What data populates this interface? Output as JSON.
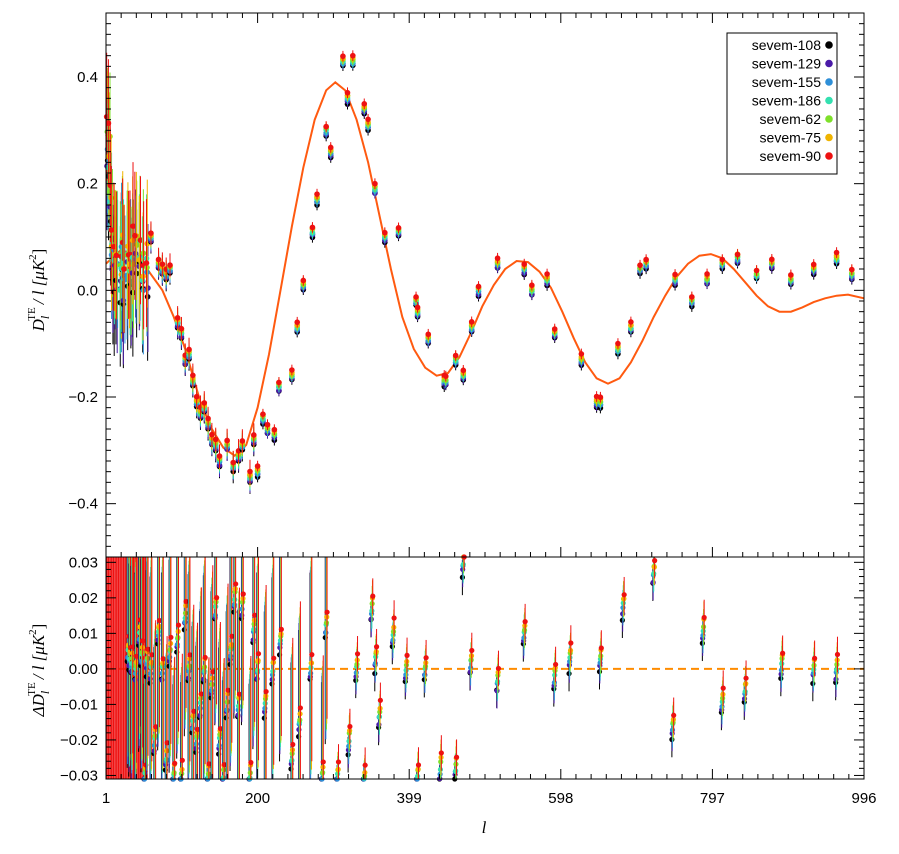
{
  "colors": {
    "sevem-108": "#000000",
    "sevem-129": "#4a1aa8",
    "sevem-155": "#2e8fd8",
    "sevem-186": "#33e0b0",
    "sevem-62": "#7ee02a",
    "sevem-75": "#f0b400",
    "sevem-90": "#ee1111",
    "model": "#ff5a10",
    "zero_line": "#ff8c00"
  },
  "chart_data": [
    {
      "type": "scatter",
      "panel": "top",
      "ylabel_main": "D",
      "ylabel_sub": "l",
      "ylabel_sup": "TE",
      "ylabel_rest": "/ l  [μK",
      "ylabel_unit_sup": "2",
      "ylabel_close": "]",
      "xlim": [
        1,
        996
      ],
      "ylim": [
        -0.5,
        0.52
      ],
      "xticks_labeled": [
        1,
        200,
        399,
        598,
        797,
        996
      ],
      "yticks_labeled": [
        {
          "value": -0.4,
          "label": "−0.4"
        },
        {
          "value": -0.2,
          "label": "−0.2"
        },
        {
          "value": 0.0,
          "label": "0.0"
        },
        {
          "value": 0.2,
          "label": "0.2"
        },
        {
          "value": 0.4,
          "label": "0.4"
        }
      ],
      "legend": {
        "position": "top-right",
        "entries": [
          "sevem-108",
          "sevem-129",
          "sevem-155",
          "sevem-186",
          "sevem-62",
          "sevem-75",
          "sevem-90"
        ]
      },
      "model_curve": {
        "x": [
          1,
          20,
          35,
          50,
          60,
          75,
          90,
          105,
          115,
          125,
          140,
          155,
          170,
          185,
          200,
          215,
          230,
          245,
          260,
          275,
          290,
          302,
          315,
          330,
          345,
          360,
          375,
          390,
          405,
          420,
          435,
          450,
          465,
          480,
          495,
          510,
          525,
          540,
          555,
          570,
          585,
          600,
          615,
          630,
          645,
          660,
          675,
          690,
          705,
          720,
          735,
          750,
          765,
          780,
          795,
          810,
          825,
          840,
          855,
          870,
          885,
          900,
          915,
          930,
          945,
          960,
          975,
          996
        ],
        "y": [
          0.05,
          0.075,
          0.07,
          0.05,
          0.03,
          0.0,
          -0.05,
          -0.11,
          -0.16,
          -0.21,
          -0.26,
          -0.295,
          -0.31,
          -0.29,
          -0.22,
          -0.12,
          0.0,
          0.12,
          0.23,
          0.32,
          0.375,
          0.39,
          0.375,
          0.32,
          0.24,
          0.14,
          0.04,
          -0.05,
          -0.11,
          -0.145,
          -0.16,
          -0.155,
          -0.125,
          -0.08,
          -0.03,
          0.01,
          0.04,
          0.055,
          0.053,
          0.035,
          0.005,
          -0.04,
          -0.09,
          -0.135,
          -0.165,
          -0.175,
          -0.165,
          -0.135,
          -0.095,
          -0.05,
          -0.01,
          0.025,
          0.05,
          0.065,
          0.068,
          0.06,
          0.04,
          0.015,
          -0.01,
          -0.03,
          -0.04,
          -0.04,
          -0.032,
          -0.022,
          -0.015,
          -0.01,
          -0.008,
          -0.015
        ]
      },
      "points": {
        "x": [
          3,
          5,
          7,
          9,
          12,
          15,
          20,
          22,
          25,
          30,
          33,
          36,
          40,
          45,
          50,
          55,
          60,
          70,
          75,
          80,
          85,
          95,
          100,
          105,
          110,
          115,
          120,
          125,
          130,
          135,
          140,
          145,
          150,
          160,
          168,
          175,
          180,
          190,
          195,
          200,
          207,
          213,
          222,
          228,
          245,
          252,
          260,
          272,
          278,
          290,
          296,
          312,
          318,
          325,
          340,
          345,
          354,
          367,
          385,
          408,
          410,
          424,
          445,
          447,
          460,
          470,
          481,
          490,
          515,
          550,
          560,
          580,
          590,
          625,
          645,
          650,
          673,
          690,
          702,
          710,
          748,
          770,
          790,
          810,
          830,
          855,
          875,
          900,
          930,
          960,
          980
        ],
        "y": [
          0.28,
          0.25,
          0.17,
          0.08,
          0.06,
          0.04,
          0.03,
          0.07,
          0.03,
          0.06,
          0.05,
          0.06,
          0.07,
          0.06,
          0.03,
          0.04,
          0.1,
          0.05,
          0.04,
          0.03,
          0.04,
          -0.06,
          -0.08,
          -0.13,
          -0.12,
          -0.17,
          -0.21,
          -0.23,
          -0.22,
          -0.25,
          -0.28,
          -0.29,
          -0.32,
          -0.29,
          -0.33,
          -0.31,
          -0.29,
          -0.35,
          -0.28,
          -0.34,
          -0.24,
          -0.26,
          -0.27,
          -0.18,
          -0.16,
          -0.07,
          0.01,
          0.11,
          0.17,
          0.3,
          0.26,
          0.43,
          0.36,
          0.43,
          0.34,
          0.31,
          0.19,
          0.1,
          0.11,
          -0.02,
          -0.04,
          -0.09,
          -0.17,
          -0.17,
          -0.13,
          -0.16,
          -0.07,
          0.0,
          0.05,
          0.04,
          0.0,
          0.02,
          -0.08,
          -0.13,
          -0.21,
          -0.21,
          -0.11,
          -0.07,
          0.04,
          0.05,
          0.02,
          -0.02,
          0.02,
          0.05,
          0.06,
          0.03,
          0.05,
          0.02,
          0.04,
          0.06,
          0.03
        ]
      }
    },
    {
      "type": "scatter",
      "panel": "bottom",
      "ylabel_main": "ΔD",
      "ylabel_sub": "l",
      "ylabel_sup": "TE",
      "ylabel_rest": "/ l  [μK",
      "ylabel_unit_sup": "2",
      "ylabel_close": "]",
      "xlabel": "l",
      "xlim": [
        1,
        996
      ],
      "ylim": [
        -0.031,
        0.0315
      ],
      "xticks_labeled": [
        {
          "value": 1,
          "label": "1"
        },
        {
          "value": 200,
          "label": "200"
        },
        {
          "value": 399,
          "label": "399"
        },
        {
          "value": 598,
          "label": "598"
        },
        {
          "value": 797,
          "label": "797"
        },
        {
          "value": 996,
          "label": "996"
        }
      ],
      "yticks_labeled": [
        {
          "value": -0.03,
          "label": "−0.03"
        },
        {
          "value": -0.02,
          "label": "−0.02"
        },
        {
          "value": -0.01,
          "label": "−0.01"
        },
        {
          "value": 0.0,
          "label": "0.00"
        },
        {
          "value": 0.01,
          "label": "0.01"
        },
        {
          "value": 0.02,
          "label": "0.02"
        },
        {
          "value": 0.03,
          "label": "0.03"
        }
      ],
      "zero_line": 0.0,
      "points": {
        "x": [
          30,
          32,
          35,
          40,
          45,
          48,
          52,
          55,
          60,
          65,
          70,
          75,
          80,
          85,
          90,
          95,
          100,
          105,
          110,
          115,
          120,
          125,
          130,
          135,
          140,
          145,
          150,
          155,
          160,
          165,
          170,
          175,
          180,
          190,
          195,
          200,
          210,
          220,
          230,
          245,
          255,
          270,
          285,
          290,
          305,
          320,
          330,
          340,
          350,
          355,
          360,
          378,
          395,
          410,
          420,
          440,
          460,
          470,
          480,
          515,
          550,
          590,
          610,
          650,
          680,
          720,
          745,
          785,
          810,
          840,
          888,
          930,
          960
        ],
        "y": [
          0.005,
          0.003,
          0.002,
          0.0,
          0.01,
          0.004,
          -0.03,
          0.002,
          0.0,
          -0.02,
          0.01,
          0.0,
          -0.025,
          0.005,
          -0.03,
          0.008,
          -0.03,
          0.015,
          0.0,
          -0.015,
          -0.02,
          -0.01,
          0.0,
          -0.03,
          -0.005,
          0.017,
          -0.02,
          -0.03,
          -0.01,
          0.005,
          0.02,
          -0.01,
          0.018,
          -0.03,
          0.011,
          0.0,
          -0.01,
          0.0,
          0.008,
          -0.025,
          -0.015,
          0.0,
          -0.03,
          0.012,
          -0.03,
          -0.02,
          0.0,
          -0.031,
          0.017,
          0.003,
          -0.013,
          0.01,
          0.0,
          -0.03,
          0.0,
          -0.028,
          -0.028,
          0.03,
          0.002,
          -0.003,
          0.01,
          -0.002,
          0.003,
          0.003,
          0.018,
          0.027,
          -0.016,
          0.011,
          -0.009,
          -0.006,
          0.001,
          0.0,
          0.0
        ]
      }
    }
  ],
  "figure": {
    "xlabel": "l"
  }
}
